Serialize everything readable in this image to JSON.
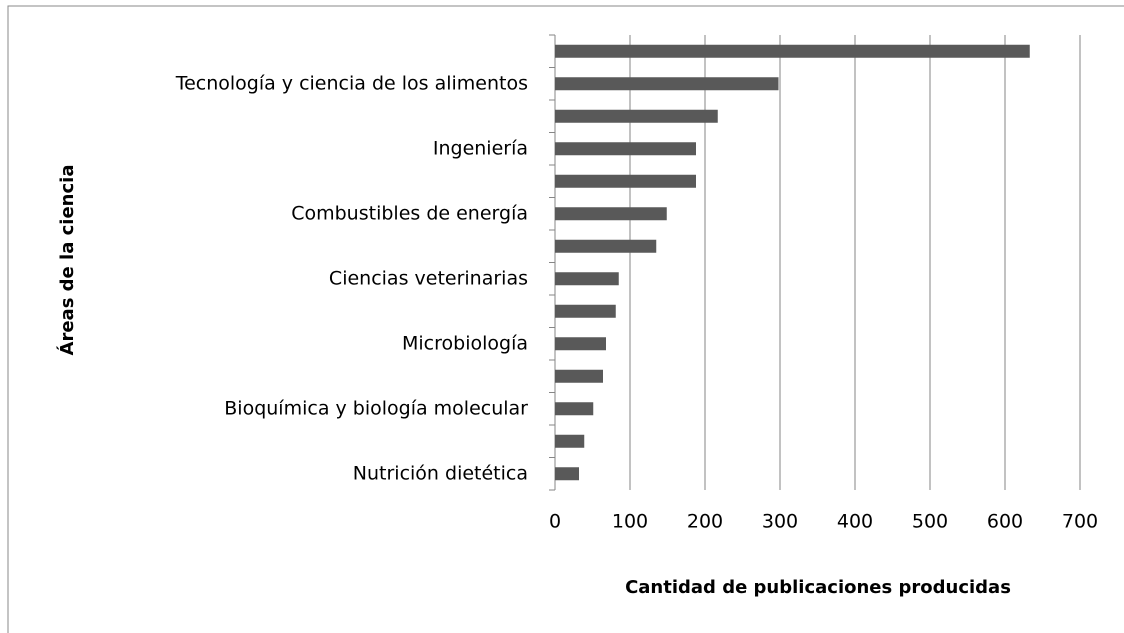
{
  "chart_data": {
    "type": "bar",
    "orientation": "horizontal",
    "xlabel": "Cantidad de publicaciones producidas",
    "ylabel": "Áreas de la ciencia",
    "categories": [
      null,
      "Tecnología y ciencia de los alimentos",
      null,
      "Ingeniería",
      null,
      "Combustibles de energía",
      null,
      "Ciencias veterinarias",
      null,
      "Microbiología",
      null,
      "Bioquímica y biología molecular",
      null,
      "Nutrición dietética"
    ],
    "values": [
      633,
      298,
      217,
      188,
      188,
      149,
      135,
      85,
      81,
      68,
      64,
      51,
      39,
      32
    ],
    "color": "#595959",
    "xlim": [
      0,
      700
    ],
    "xticks": [
      0,
      100,
      200,
      300,
      400,
      500,
      600,
      700
    ],
    "grid": true
  }
}
